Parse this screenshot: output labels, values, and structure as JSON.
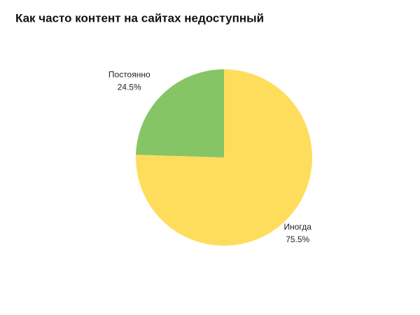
{
  "chart_data": {
    "type": "pie",
    "title": "Как часто контент на сайтах недоступный",
    "categories": [
      "Иногда",
      "Постоянно"
    ],
    "values": [
      75.5,
      24.5
    ],
    "value_labels": [
      "75.5%",
      "24.5%"
    ],
    "colors": [
      "#ffdd5c",
      "#86c566"
    ]
  }
}
